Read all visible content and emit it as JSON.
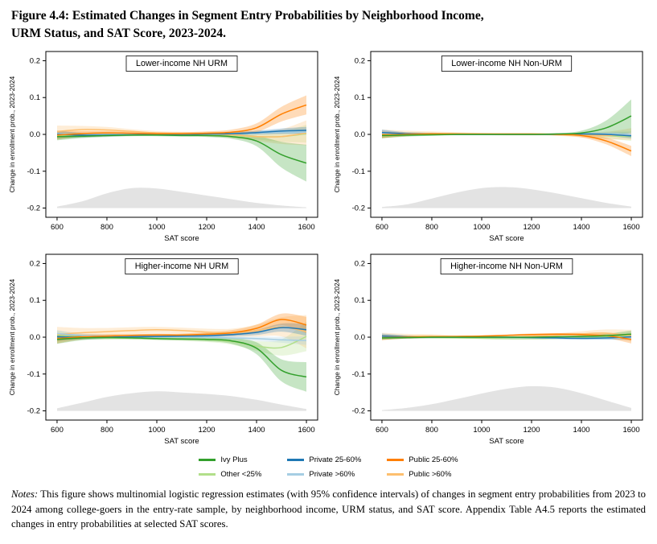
{
  "figure": {
    "title_line1": "Figure 4.4: Estimated Changes in Segment Entry Probabilities by Neighborhood Income,",
    "title_line2": "URM Status, and SAT Score, 2023-2024.",
    "notes_label": "Notes:",
    "notes_text": " This figure shows multinomial logistic regression estimates (with 95% confidence intervals) of changes in segment entry probabilities from 2023 to 2024 among college-goers in the entry-rate sample, by neighborhood income, URM status, and SAT score. Appendix Table A4.5 reports the estimated changes in entry probabilities at selected SAT scores."
  },
  "legend": {
    "items": [
      {
        "label": "Ivy Plus",
        "color": "#33a02c"
      },
      {
        "label": "Other <25%",
        "color": "#b2df8a"
      },
      {
        "label": "Private 25-60%",
        "color": "#1f78b4"
      },
      {
        "label": "Private >60%",
        "color": "#a6cee3"
      },
      {
        "label": "Public 25-60%",
        "color": "#ff7f00"
      },
      {
        "label": "Public >60%",
        "color": "#fdbf6f"
      }
    ]
  },
  "chart_data": [
    {
      "type": "line",
      "title": "Lower-income NH URM",
      "xlabel": "SAT score",
      "ylabel": "Change in enrollment prob., 2023-2024",
      "xlim": [
        555,
        1645
      ],
      "ylim": [
        -0.225,
        0.225
      ],
      "xticks": [
        600,
        800,
        1000,
        1200,
        1400,
        1600
      ],
      "yticks": [
        0.2,
        0.1,
        0.0,
        -0.1,
        -0.2
      ],
      "x": [
        600,
        700,
        800,
        900,
        1000,
        1100,
        1200,
        1300,
        1400,
        1500,
        1600
      ],
      "series": [
        {
          "name": "Other <25%",
          "color": "#b2df8a",
          "values": [
            -0.004,
            -0.002,
            -0.001,
            0.0,
            0.0,
            -0.001,
            -0.002,
            -0.004,
            -0.006,
            -0.006,
            0.002
          ],
          "band": [
            0.01,
            0.006,
            0.004,
            0.003,
            0.003,
            0.003,
            0.004,
            0.005,
            0.008,
            0.014,
            0.024
          ]
        },
        {
          "name": "Public >60%",
          "color": "#fdbf6f",
          "values": [
            0.008,
            0.013,
            0.012,
            0.008,
            0.004,
            0.002,
            0.001,
            -0.001,
            -0.006,
            -0.006,
            0.004
          ],
          "band": [
            0.016,
            0.01,
            0.008,
            0.006,
            0.005,
            0.005,
            0.006,
            0.008,
            0.012,
            0.02,
            0.034
          ]
        },
        {
          "name": "Private >60%",
          "color": "#a6cee3",
          "values": [
            0.002,
            0.0,
            0.0,
            0.001,
            0.001,
            0.001,
            0.001,
            0.002,
            0.004,
            0.006,
            0.006
          ],
          "band": [
            0.008,
            0.005,
            0.004,
            0.003,
            0.003,
            0.003,
            0.003,
            0.004,
            0.005,
            0.006,
            0.008
          ]
        },
        {
          "name": "Private 25-60%",
          "color": "#1f78b4",
          "values": [
            0.0,
            -0.002,
            -0.002,
            -0.001,
            0.0,
            0.0,
            0.001,
            0.002,
            0.005,
            0.009,
            0.011
          ],
          "band": [
            0.01,
            0.006,
            0.004,
            0.003,
            0.003,
            0.003,
            0.003,
            0.004,
            0.005,
            0.007,
            0.009
          ]
        },
        {
          "name": "Public 25-60%",
          "color": "#ff7f00",
          "values": [
            -0.002,
            0.002,
            0.004,
            0.003,
            0.002,
            0.002,
            0.003,
            0.006,
            0.018,
            0.055,
            0.08
          ],
          "band": [
            0.012,
            0.007,
            0.005,
            0.004,
            0.004,
            0.004,
            0.005,
            0.007,
            0.012,
            0.02,
            0.026
          ]
        },
        {
          "name": "Ivy Plus",
          "color": "#33a02c",
          "values": [
            -0.006,
            -0.005,
            -0.003,
            -0.002,
            -0.002,
            -0.003,
            -0.003,
            -0.006,
            -0.018,
            -0.055,
            -0.078
          ],
          "band": [
            0.01,
            0.005,
            0.004,
            0.003,
            0.003,
            0.003,
            0.004,
            0.006,
            0.014,
            0.035,
            0.05
          ]
        }
      ],
      "density": {
        "baseline": -0.2,
        "heights": [
          0.004,
          0.018,
          0.04,
          0.054,
          0.053,
          0.044,
          0.034,
          0.024,
          0.014,
          0.007,
          0.002
        ]
      }
    },
    {
      "type": "line",
      "title": "Lower-income NH Non-URM",
      "xlabel": "SAT score",
      "ylabel": "Change in enrollment prob., 2023-2024",
      "xlim": [
        555,
        1645
      ],
      "ylim": [
        -0.225,
        0.225
      ],
      "xticks": [
        600,
        800,
        1000,
        1200,
        1400,
        1600
      ],
      "yticks": [
        0.2,
        0.1,
        0.0,
        -0.1,
        -0.2
      ],
      "x": [
        600,
        700,
        800,
        900,
        1000,
        1100,
        1200,
        1300,
        1400,
        1500,
        1600
      ],
      "series": [
        {
          "name": "Other <25%",
          "color": "#b2df8a",
          "values": [
            -0.002,
            -0.001,
            0.0,
            0.0,
            0.0,
            0.0,
            0.0,
            0.0,
            -0.001,
            -0.004,
            -0.006
          ],
          "band": [
            0.008,
            0.004,
            0.003,
            0.002,
            0.002,
            0.002,
            0.002,
            0.003,
            0.004,
            0.007,
            0.012
          ]
        },
        {
          "name": "Public >60%",
          "color": "#fdbf6f",
          "values": [
            0.001,
            0.003,
            0.003,
            0.002,
            0.001,
            0.0,
            0.0,
            0.0,
            -0.002,
            -0.003,
            0.001
          ],
          "band": [
            0.012,
            0.007,
            0.005,
            0.004,
            0.003,
            0.003,
            0.003,
            0.004,
            0.006,
            0.01,
            0.016
          ]
        },
        {
          "name": "Private >60%",
          "color": "#a6cee3",
          "values": [
            0.004,
            0.001,
            0.0,
            0.0,
            0.0,
            0.0,
            0.0,
            0.001,
            0.002,
            0.002,
            0.0
          ],
          "band": [
            0.007,
            0.004,
            0.003,
            0.002,
            0.002,
            0.002,
            0.002,
            0.002,
            0.003,
            0.005,
            0.008
          ]
        },
        {
          "name": "Private 25-60%",
          "color": "#1f78b4",
          "values": [
            0.005,
            0.002,
            0.001,
            0.0,
            0.0,
            0.0,
            0.0,
            0.0,
            0.001,
            0.0,
            -0.004
          ],
          "band": [
            0.008,
            0.004,
            0.003,
            0.002,
            0.002,
            0.002,
            0.002,
            0.002,
            0.003,
            0.004,
            0.007
          ]
        },
        {
          "name": "Public 25-60%",
          "color": "#ff7f00",
          "values": [
            -0.001,
            0.0,
            0.001,
            0.001,
            0.001,
            0.001,
            0.001,
            0.0,
            -0.003,
            -0.018,
            -0.045
          ],
          "band": [
            0.009,
            0.005,
            0.003,
            0.003,
            0.002,
            0.002,
            0.002,
            0.003,
            0.005,
            0.009,
            0.014
          ]
        },
        {
          "name": "Ivy Plus",
          "color": "#33a02c",
          "values": [
            -0.003,
            -0.002,
            -0.001,
            0.0,
            0.0,
            0.0,
            0.0,
            0.001,
            0.004,
            0.018,
            0.05
          ],
          "band": [
            0.007,
            0.004,
            0.003,
            0.002,
            0.002,
            0.002,
            0.002,
            0.002,
            0.006,
            0.02,
            0.045
          ]
        }
      ],
      "density": {
        "baseline": -0.2,
        "heights": [
          0.003,
          0.01,
          0.026,
          0.042,
          0.054,
          0.057,
          0.051,
          0.04,
          0.027,
          0.014,
          0.004
        ]
      }
    },
    {
      "type": "line",
      "title": "Higher-income NH URM",
      "xlabel": "SAT score",
      "ylabel": "Change in enrollment prob., 2023-2024",
      "xlim": [
        555,
        1645
      ],
      "ylim": [
        -0.225,
        0.225
      ],
      "xticks": [
        600,
        800,
        1000,
        1200,
        1400,
        1600
      ],
      "yticks": [
        0.2,
        0.1,
        0.0,
        -0.1,
        -0.2
      ],
      "x": [
        600,
        700,
        800,
        900,
        1000,
        1100,
        1200,
        1300,
        1400,
        1500,
        1600
      ],
      "series": [
        {
          "name": "Other <25%",
          "color": "#b2df8a",
          "values": [
            0.006,
            0.0,
            -0.002,
            -0.003,
            -0.004,
            -0.005,
            -0.007,
            -0.012,
            -0.024,
            -0.028,
            0.002
          ],
          "band": [
            0.012,
            0.007,
            0.005,
            0.004,
            0.004,
            0.005,
            0.006,
            0.008,
            0.013,
            0.022,
            0.04
          ]
        },
        {
          "name": "Public >60%",
          "color": "#fdbf6f",
          "values": [
            0.008,
            0.012,
            0.015,
            0.018,
            0.02,
            0.018,
            0.014,
            0.012,
            0.018,
            0.028,
            0.015
          ],
          "band": [
            0.02,
            0.013,
            0.01,
            0.009,
            0.008,
            0.008,
            0.009,
            0.011,
            0.016,
            0.026,
            0.045
          ]
        },
        {
          "name": "Private >60%",
          "color": "#a6cee3",
          "values": [
            0.01,
            0.005,
            0.003,
            0.002,
            0.002,
            0.001,
            0.0,
            -0.002,
            -0.004,
            -0.007,
            -0.009
          ],
          "band": [
            0.009,
            0.005,
            0.004,
            0.003,
            0.003,
            0.003,
            0.004,
            0.004,
            0.006,
            0.008,
            0.012
          ]
        },
        {
          "name": "Private 25-60%",
          "color": "#1f78b4",
          "values": [
            0.001,
            0.0,
            0.0,
            0.001,
            0.002,
            0.003,
            0.004,
            0.007,
            0.013,
            0.026,
            0.02
          ],
          "band": [
            0.01,
            0.006,
            0.004,
            0.003,
            0.003,
            0.003,
            0.004,
            0.005,
            0.007,
            0.011,
            0.016
          ]
        },
        {
          "name": "Public 25-60%",
          "color": "#ff7f00",
          "values": [
            -0.004,
            0.001,
            0.003,
            0.005,
            0.006,
            0.006,
            0.008,
            0.012,
            0.024,
            0.048,
            0.033
          ],
          "band": [
            0.013,
            0.007,
            0.005,
            0.004,
            0.004,
            0.004,
            0.005,
            0.007,
            0.01,
            0.016,
            0.022
          ]
        },
        {
          "name": "Ivy Plus",
          "color": "#33a02c",
          "values": [
            -0.006,
            -0.002,
            -0.001,
            -0.002,
            -0.004,
            -0.005,
            -0.006,
            -0.01,
            -0.03,
            -0.09,
            -0.108
          ],
          "band": [
            0.012,
            0.006,
            0.004,
            0.003,
            0.003,
            0.004,
            0.005,
            0.008,
            0.016,
            0.03,
            0.04
          ]
        }
      ],
      "density": {
        "baseline": -0.2,
        "heights": [
          0.007,
          0.022,
          0.038,
          0.048,
          0.053,
          0.05,
          0.046,
          0.04,
          0.03,
          0.017,
          0.005
        ]
      }
    },
    {
      "type": "line",
      "title": "Higher-income NH Non-URM",
      "xlabel": "SAT score",
      "ylabel": "Change in enrollment prob., 2023-2024",
      "xlim": [
        555,
        1645
      ],
      "ylim": [
        -0.225,
        0.225
      ],
      "xticks": [
        600,
        800,
        1000,
        1200,
        1400,
        1600
      ],
      "yticks": [
        0.2,
        0.1,
        0.0,
        -0.1,
        -0.2
      ],
      "x": [
        600,
        700,
        800,
        900,
        1000,
        1100,
        1200,
        1300,
        1400,
        1500,
        1600
      ],
      "series": [
        {
          "name": "Other <25%",
          "color": "#b2df8a",
          "values": [
            0.001,
            0.0,
            -0.001,
            -0.002,
            -0.003,
            -0.004,
            -0.004,
            -0.003,
            -0.002,
            0.0,
            0.004
          ],
          "band": [
            0.006,
            0.004,
            0.003,
            0.002,
            0.002,
            0.002,
            0.002,
            0.003,
            0.003,
            0.005,
            0.009
          ]
        },
        {
          "name": "Public >60%",
          "color": "#fdbf6f",
          "values": [
            0.002,
            0.003,
            0.003,
            0.001,
            0.0,
            0.0,
            0.002,
            0.005,
            0.009,
            0.011,
            0.004
          ],
          "band": [
            0.01,
            0.006,
            0.005,
            0.004,
            0.004,
            0.004,
            0.004,
            0.005,
            0.007,
            0.01,
            0.016
          ]
        },
        {
          "name": "Private >60%",
          "color": "#a6cee3",
          "values": [
            0.001,
            0.0,
            0.0,
            0.0,
            0.0,
            -0.001,
            -0.002,
            -0.003,
            -0.004,
            -0.003,
            -0.002
          ],
          "band": [
            0.006,
            0.004,
            0.003,
            0.002,
            0.002,
            0.002,
            0.002,
            0.002,
            0.003,
            0.004,
            0.007
          ]
        },
        {
          "name": "Private 25-60%",
          "color": "#1f78b4",
          "values": [
            0.003,
            0.001,
            0.0,
            0.0,
            0.0,
            0.0,
            -0.001,
            -0.002,
            -0.003,
            -0.002,
            0.001
          ],
          "band": [
            0.007,
            0.004,
            0.003,
            0.002,
            0.002,
            0.002,
            0.002,
            0.002,
            0.003,
            0.004,
            0.007
          ]
        },
        {
          "name": "Public 25-60%",
          "color": "#ff7f00",
          "values": [
            -0.001,
            0.0,
            0.001,
            0.002,
            0.003,
            0.005,
            0.007,
            0.008,
            0.007,
            0.004,
            -0.006
          ],
          "band": [
            0.007,
            0.004,
            0.003,
            0.002,
            0.002,
            0.002,
            0.003,
            0.003,
            0.004,
            0.006,
            0.011
          ]
        },
        {
          "name": "Ivy Plus",
          "color": "#33a02c",
          "values": [
            -0.002,
            -0.001,
            0.0,
            0.0,
            0.0,
            0.0,
            0.0,
            0.001,
            0.002,
            0.004,
            0.008
          ],
          "band": [
            0.005,
            0.003,
            0.002,
            0.002,
            0.001,
            0.001,
            0.002,
            0.002,
            0.003,
            0.005,
            0.01
          ]
        }
      ],
      "density": {
        "baseline": -0.2,
        "heights": [
          0.002,
          0.008,
          0.018,
          0.032,
          0.047,
          0.06,
          0.067,
          0.063,
          0.048,
          0.028,
          0.008
        ]
      }
    }
  ]
}
